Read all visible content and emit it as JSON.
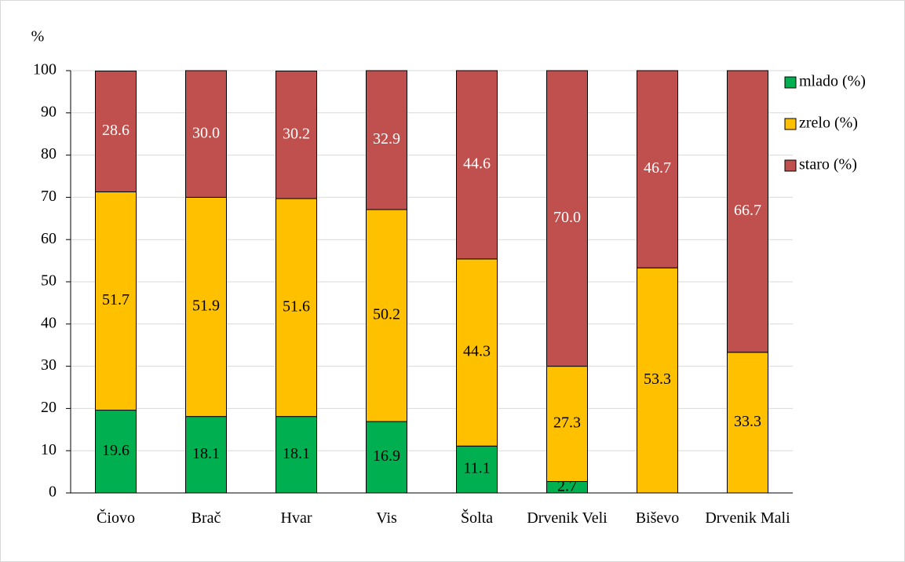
{
  "chart_data": {
    "type": "stacked-bar",
    "y_label": "%",
    "categories": [
      "Čiovo",
      "Brač",
      "Hvar",
      "Vis",
      "Šolta",
      "Drvenik Veli",
      "Biševo",
      "Drvenik Mali"
    ],
    "series": [
      {
        "name": "mlado (%)",
        "color": "#00b050",
        "label_color": "#000000",
        "values": [
          19.6,
          18.1,
          18.1,
          16.9,
          11.1,
          2.7,
          null,
          null
        ]
      },
      {
        "name": "zrelo (%)",
        "color": "#ffc000",
        "label_color": "#000000",
        "values": [
          51.7,
          51.9,
          51.6,
          50.2,
          44.3,
          27.3,
          53.3,
          33.3
        ]
      },
      {
        "name": "staro (%)",
        "color": "#c0504d",
        "label_color": "#ffffff",
        "values": [
          28.6,
          30.0,
          30.2,
          32.9,
          44.6,
          70.0,
          46.7,
          66.7
        ],
        "value_labels": [
          "28.6",
          "30.0",
          "30.2",
          "32.9",
          "44.6",
          "70.0",
          "46.7",
          "66.7"
        ]
      }
    ],
    "ylim": [
      0,
      100
    ],
    "yticks": [
      0,
      10,
      20,
      30,
      40,
      50,
      60,
      70,
      80,
      90,
      100
    ],
    "grid": true,
    "legend": "right"
  }
}
